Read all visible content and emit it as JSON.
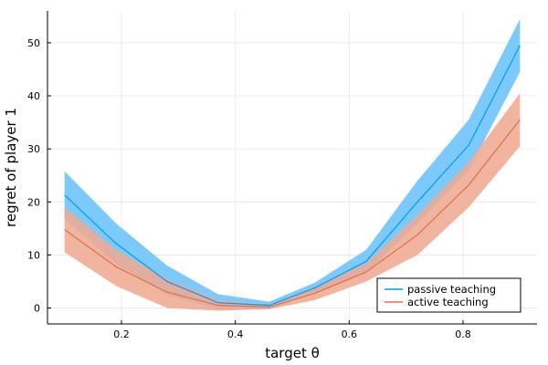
{
  "chart_data": {
    "type": "line",
    "xlabel": "target θ",
    "ylabel": "regret of player 1",
    "xlim": [
      0.07,
      0.93
    ],
    "ylim": [
      -3,
      56
    ],
    "x_ticks": [
      0.2,
      0.4,
      0.6,
      0.8
    ],
    "x_tick_labels": [
      "0.2",
      "0.4",
      "0.6",
      "0.8"
    ],
    "y_ticks": [
      0,
      10,
      20,
      30,
      40,
      50
    ],
    "y_tick_labels": [
      "0",
      "10",
      "20",
      "30",
      "40",
      "50"
    ],
    "grid": true,
    "legend_position": "bottom-right",
    "x": [
      0.1,
      0.19,
      0.28,
      0.37,
      0.46,
      0.54,
      0.63,
      0.72,
      0.81,
      0.9
    ],
    "series": [
      {
        "name": "passive teaching",
        "color": "#009af9",
        "band_color": "#6ac3fa",
        "values": [
          21.3,
          12.2,
          5.0,
          1.0,
          0.5,
          3.8,
          8.8,
          20.0,
          30.7,
          49.5
        ],
        "upper": [
          25.8,
          16.0,
          8.0,
          2.6,
          1.2,
          4.8,
          11.0,
          24.0,
          35.5,
          54.5
        ],
        "lower": [
          16.8,
          8.4,
          2.5,
          -0.3,
          -0.2,
          2.8,
          6.6,
          16.0,
          26.0,
          44.5
        ]
      },
      {
        "name": "active teaching",
        "color": "#e26f46",
        "band_color": "#eeaa92",
        "values": [
          14.8,
          7.8,
          3.0,
          0.5,
          0.2,
          2.8,
          6.8,
          13.8,
          23.2,
          35.5
        ],
        "upper": [
          19.0,
          11.0,
          5.5,
          1.5,
          0.6,
          3.8,
          8.5,
          17.5,
          27.5,
          40.5
        ],
        "lower": [
          10.5,
          4.2,
          0.0,
          -0.5,
          -0.2,
          1.5,
          5.0,
          10.0,
          19.0,
          30.5
        ]
      }
    ]
  }
}
